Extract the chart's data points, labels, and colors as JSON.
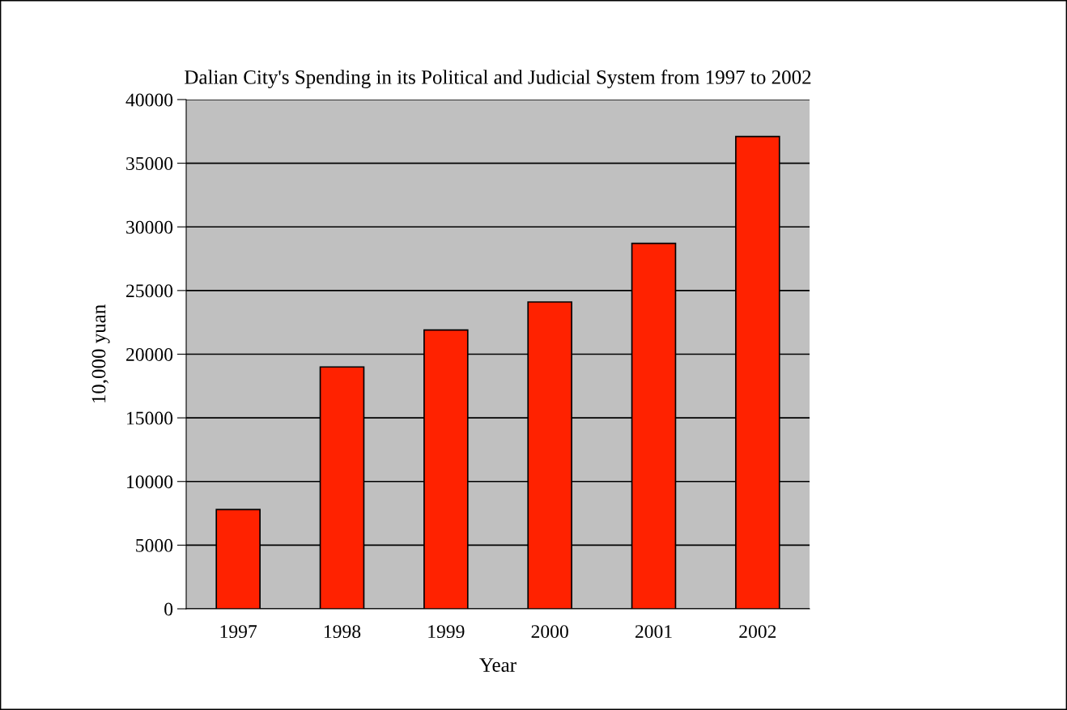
{
  "chart_data": {
    "type": "bar",
    "title": "Dalian City's Spending in its Political and Judicial System from 1997 to 2002",
    "xlabel": "Year",
    "ylabel": "10,000 yuan",
    "categories": [
      "1997",
      "1998",
      "1999",
      "2000",
      "2001",
      "2002"
    ],
    "values": [
      7800,
      19000,
      21900,
      24100,
      28700,
      37100
    ],
    "color": "#ff2200",
    "ylim": [
      0,
      40000
    ],
    "yticks": [
      0,
      5000,
      10000,
      15000,
      20000,
      25000,
      30000,
      35000,
      40000
    ],
    "grid": "y",
    "legend": false
  }
}
